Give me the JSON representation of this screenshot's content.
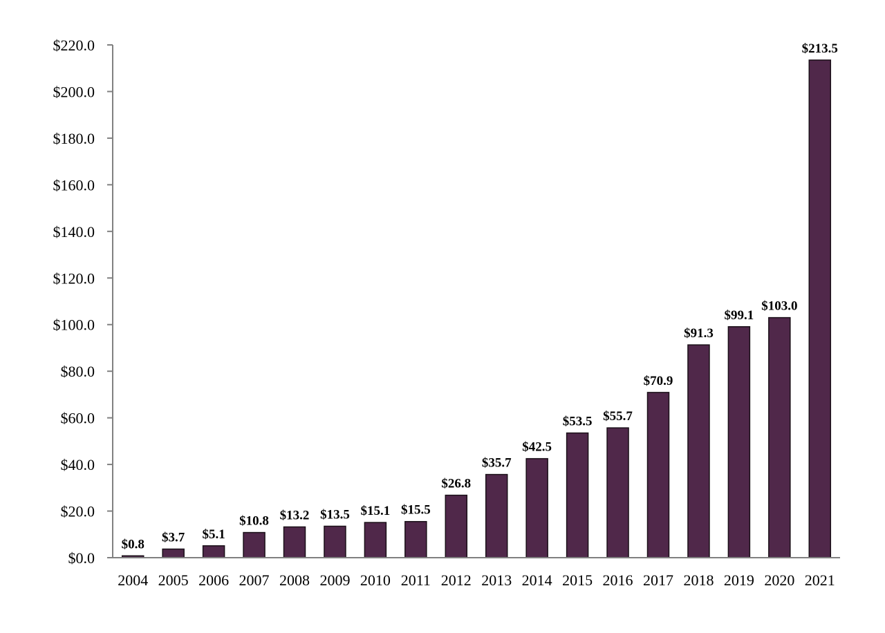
{
  "chart_data": {
    "type": "bar",
    "title": "",
    "xlabel": "",
    "ylabel": "",
    "categories": [
      "2004",
      "2005",
      "2006",
      "2007",
      "2008",
      "2009",
      "2010",
      "2011",
      "2012",
      "2013",
      "2014",
      "2015",
      "2016",
      "2017",
      "2018",
      "2019",
      "2020",
      "2021"
    ],
    "values": [
      0.8,
      3.7,
      5.1,
      10.8,
      13.2,
      13.5,
      15.1,
      15.5,
      26.8,
      35.7,
      42.5,
      53.5,
      55.7,
      70.9,
      91.3,
      99.1,
      103.0,
      213.5
    ],
    "data_labels": [
      "$0.8",
      "$3.7",
      "$5.1",
      "$10.8",
      "$13.2",
      "$13.5",
      "$15.1",
      "$15.5",
      "$26.8",
      "$35.7",
      "$42.5",
      "$53.5",
      "$55.7",
      "$70.9",
      "$91.3",
      "$99.1",
      "$103.0",
      "$213.5"
    ],
    "ylim": [
      0,
      220
    ],
    "yticks": [
      0,
      20,
      40,
      60,
      80,
      100,
      120,
      140,
      160,
      180,
      200,
      220
    ],
    "ytick_labels": [
      "$0.0",
      "$20.0",
      "$40.0",
      "$60.0",
      "$80.0",
      "$100.0",
      "$120.0",
      "$140.0",
      "$160.0",
      "$180.0",
      "$200.0",
      "$220.0"
    ],
    "grid": false,
    "legend": "none",
    "bar_color": "#50284a",
    "bar_edge_color": "#1a1018",
    "axis_color": "#808080"
  }
}
